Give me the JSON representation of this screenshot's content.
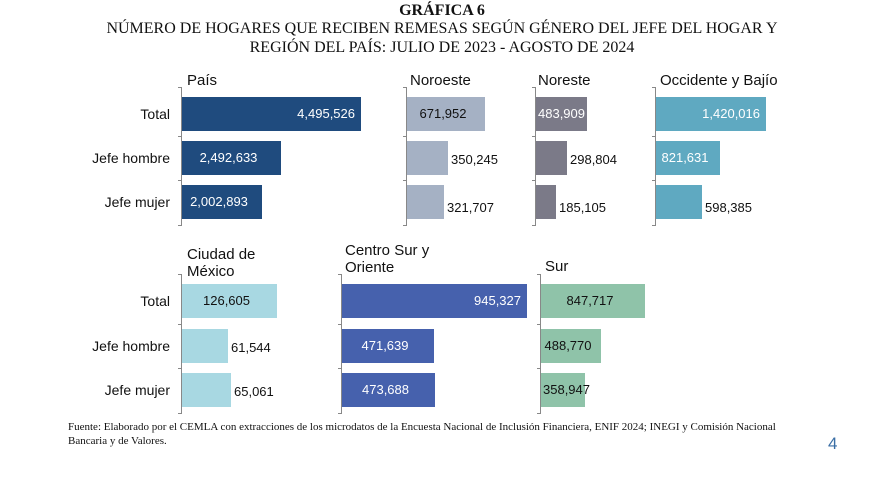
{
  "title": "GRÁFICA 6",
  "subtitle": "NÚMERO DE HOGARES QUE RECIBEN REMESAS SEGÚN GÉNERO DEL JEFE DEL HOGAR Y REGIÓN DEL PAÍS: JULIO DE 2023 - AGOSTO DE 2024",
  "chart_data": {
    "type": "bar",
    "orientation": "horizontal",
    "categories": [
      "Total",
      "Jefe hombre",
      "Jefe mujer"
    ],
    "panels": [
      {
        "name": "País",
        "color": "#1f4b7e",
        "label_color": "#ffffff",
        "values": [
          4495526,
          2492633,
          2002893
        ],
        "labels": [
          "4,495,526",
          "2,492,633",
          "2,002,893"
        ]
      },
      {
        "name": "Noroeste",
        "color": "#a5b1c4",
        "label_color": "#111111",
        "values": [
          671952,
          350245,
          321707
        ],
        "labels": [
          "671,952",
          "350,245",
          "321,707"
        ]
      },
      {
        "name": "Noreste",
        "color": "#7b7a88",
        "label_color": "#ffffff",
        "values": [
          483909,
          298804,
          185105
        ],
        "labels": [
          "483,909",
          "298,804",
          "185,105"
        ]
      },
      {
        "name": "Occidente y Bajío",
        "color": "#5fa9c1",
        "label_color": "#ffffff",
        "values": [
          1420016,
          821631,
          598385
        ],
        "labels": [
          "1,420,016",
          "821,631",
          "598,385"
        ]
      },
      {
        "name": "Ciudad de México",
        "color": "#a8d8e2",
        "label_color": "#111111",
        "values": [
          126605,
          61544,
          65061
        ],
        "labels": [
          "126,605",
          "61,544",
          "65,061"
        ]
      },
      {
        "name": "Centro Sur y Oriente",
        "color": "#4661ad",
        "label_color": "#ffffff",
        "values": [
          945327,
          471639,
          473688
        ],
        "labels": [
          "945,327",
          "471,639",
          "473,688"
        ]
      },
      {
        "name": "Sur",
        "color": "#8fc3a9",
        "label_color": "#111111",
        "values": [
          847717,
          488770,
          358947
        ],
        "labels": [
          "847,717",
          "488,770",
          "358,947"
        ]
      }
    ]
  },
  "source": "Fuente: Elaborado por el CEMLA con extracciones de los microdatos de la Encuesta Nacional de Inclusión Financiera, ENIF 2024; INEGI y Comisión Nacional Bancaria y de Valores.",
  "page_number": "4"
}
